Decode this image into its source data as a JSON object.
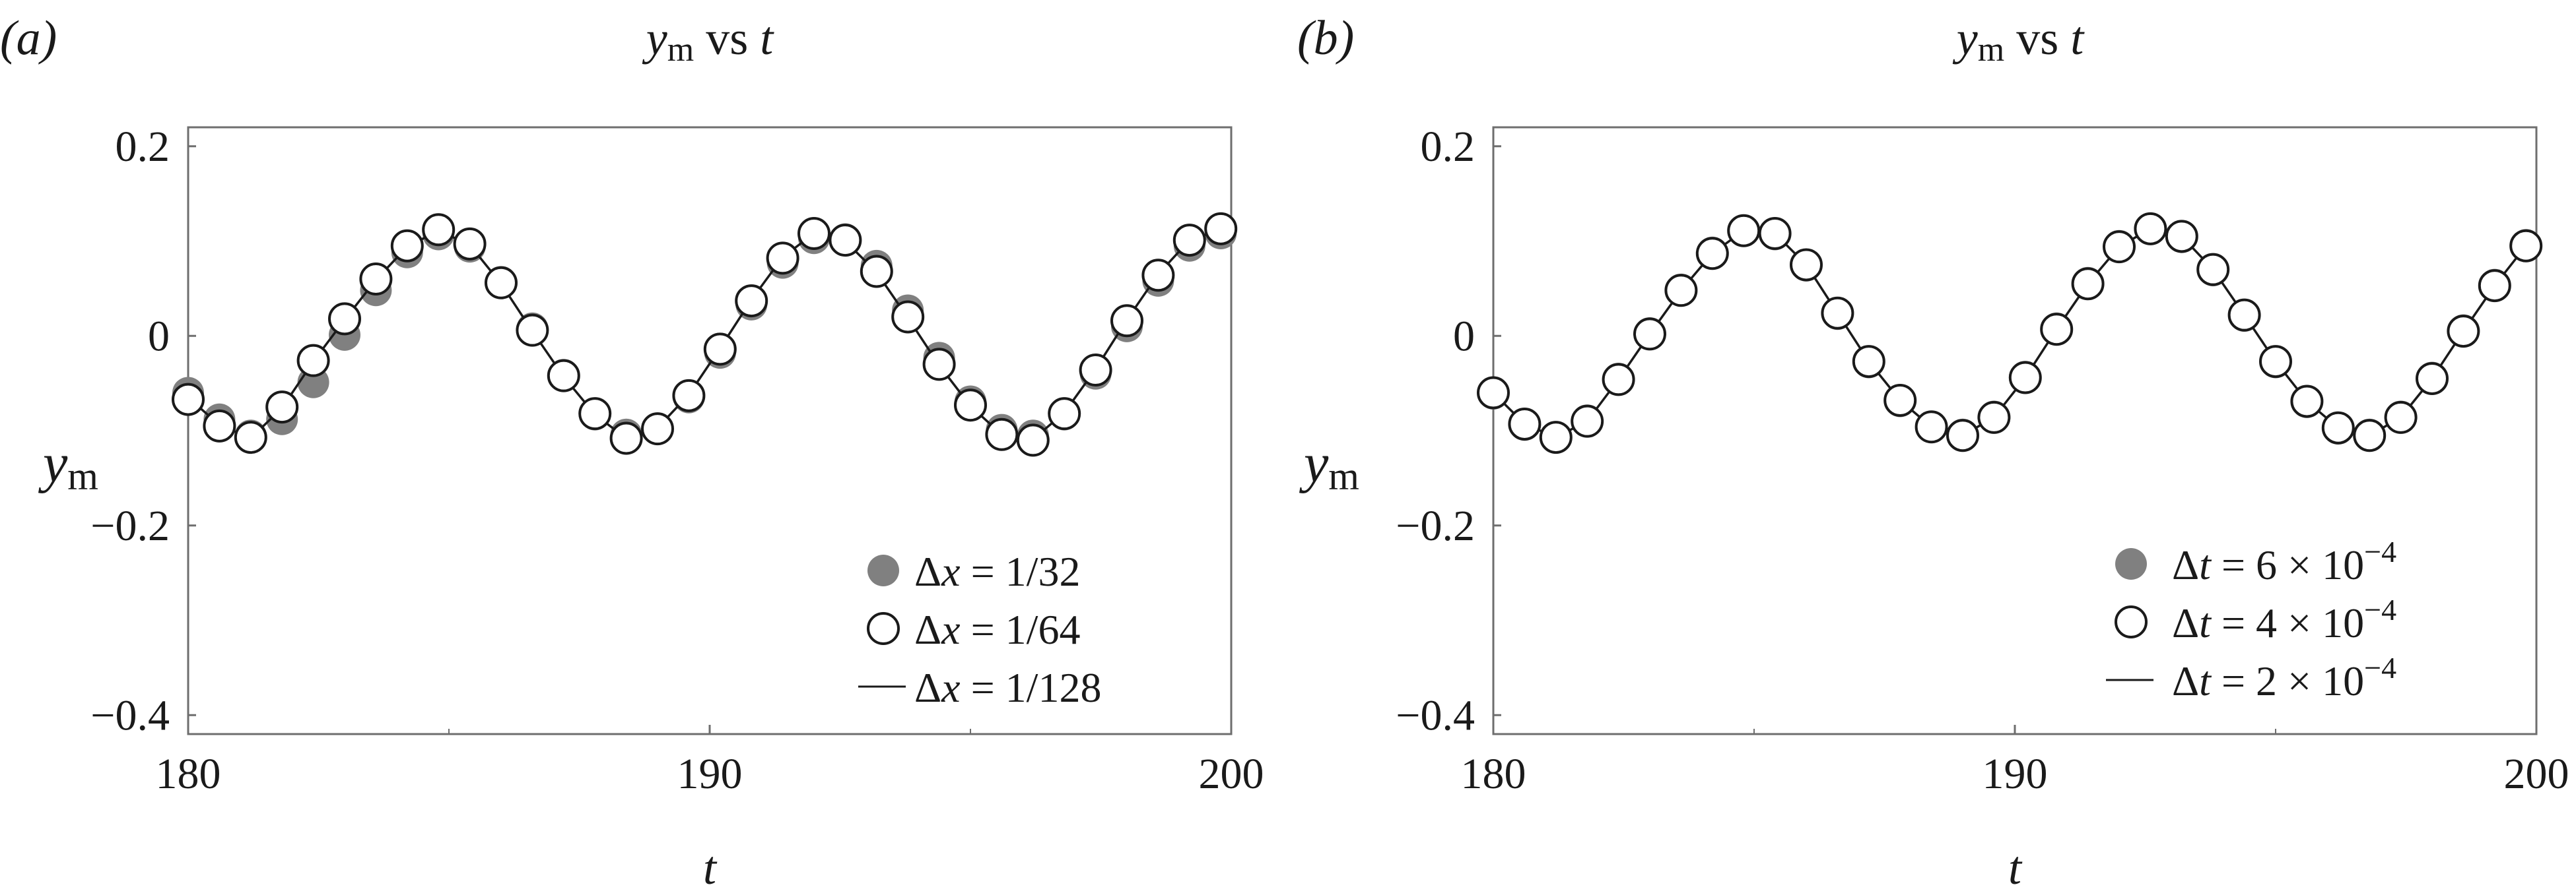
{
  "chart_data": [
    {
      "type": "line",
      "panel_label": "(a)",
      "title": {
        "var": "y",
        "sub": "m",
        "rest": " vs ",
        "tvar": "t"
      },
      "xlabel": "t",
      "ylabel": {
        "var": "y",
        "sub": "m"
      },
      "xlim": [
        180,
        200
      ],
      "ylim": [
        -0.42,
        0.22
      ],
      "xticks": [
        180,
        190,
        200
      ],
      "xtick_labels": [
        "180",
        "190",
        "200"
      ],
      "yticks": [
        0.2,
        0,
        -0.2,
        -0.4
      ],
      "ytick_labels": [
        "0.2",
        "0",
        "−0.2",
        "−0.4"
      ],
      "legend_position": "bottom-right",
      "colors": {
        "filled": "#808080",
        "open_fill": "#ffffff",
        "edge": "#1a1a1a",
        "line": "#1a1a1a"
      },
      "series": [
        {
          "name": "Δx = 1/32",
          "legend": {
            "sym": "Δ",
            "var": "x",
            "text": " = 1/32"
          },
          "marker": "filled",
          "x": [
            180,
            180.6,
            181.2,
            181.8,
            182.4,
            183,
            183.6,
            184.2,
            184.8,
            185.4,
            186,
            186.6,
            187.2,
            187.8,
            188.4,
            189,
            189.6,
            190.2,
            190.8,
            191.4,
            192,
            192.6,
            193.2,
            193.8,
            194.4,
            195,
            195.6,
            196.2,
            196.8,
            197.4,
            198,
            198.6,
            199.2,
            199.8
          ],
          "y": [
            -0.06,
            -0.088,
            -0.105,
            -0.088,
            -0.049,
            0.001,
            0.048,
            0.088,
            0.107,
            0.094,
            0.057,
            0.008,
            -0.041,
            -0.083,
            -0.104,
            -0.098,
            -0.065,
            -0.018,
            0.033,
            0.077,
            0.103,
            0.102,
            0.074,
            0.027,
            -0.023,
            -0.069,
            -0.099,
            -0.105,
            -0.083,
            -0.04,
            0.01,
            0.058,
            0.095,
            0.108
          ]
        },
        {
          "name": "Δx = 1/64",
          "legend": {
            "sym": "Δ",
            "var": "x",
            "text": " = 1/64"
          },
          "marker": "open",
          "x": [
            180,
            180.6,
            181.2,
            181.8,
            182.4,
            183,
            183.6,
            184.2,
            184.8,
            185.4,
            186,
            186.6,
            187.2,
            187.8,
            188.4,
            189,
            189.6,
            190.2,
            190.8,
            191.4,
            192,
            192.6,
            193.2,
            193.8,
            194.4,
            195,
            195.6,
            196.2,
            196.8,
            197.4,
            198,
            198.6,
            199.2,
            199.8
          ],
          "y": [
            -0.067,
            -0.095,
            -0.107,
            -0.075,
            -0.026,
            0.018,
            0.06,
            0.095,
            0.112,
            0.097,
            0.056,
            0.006,
            -0.042,
            -0.082,
            -0.108,
            -0.098,
            -0.063,
            -0.014,
            0.037,
            0.082,
            0.108,
            0.101,
            0.068,
            0.02,
            -0.03,
            -0.073,
            -0.104,
            -0.11,
            -0.082,
            -0.036,
            0.016,
            0.064,
            0.101,
            0.113
          ]
        },
        {
          "name": "Δx = 1/128",
          "legend": {
            "sym": "Δ",
            "var": "x",
            "text": " = 1/128"
          },
          "marker": "line",
          "x": [
            180,
            180.6,
            181.2,
            181.8,
            182.4,
            183,
            183.6,
            184.2,
            184.8,
            185.4,
            186,
            186.6,
            187.2,
            187.8,
            188.4,
            189,
            189.6,
            190.2,
            190.8,
            191.4,
            192,
            192.6,
            193.2,
            193.8,
            194.4,
            195,
            195.6,
            196.2,
            196.8,
            197.4,
            198,
            198.6,
            199.2,
            199.8
          ],
          "y": [
            -0.065,
            -0.094,
            -0.108,
            -0.076,
            -0.027,
            0.017,
            0.059,
            0.094,
            0.111,
            0.096,
            0.055,
            0.005,
            -0.043,
            -0.083,
            -0.108,
            -0.097,
            -0.062,
            -0.013,
            0.038,
            0.083,
            0.108,
            0.1,
            0.067,
            0.019,
            -0.031,
            -0.074,
            -0.104,
            -0.109,
            -0.081,
            -0.035,
            0.017,
            0.065,
            0.101,
            0.112
          ]
        }
      ]
    },
    {
      "type": "line",
      "panel_label": "(b)",
      "title": {
        "var": "y",
        "sub": "m",
        "rest": " vs ",
        "tvar": "t"
      },
      "xlabel": "t",
      "ylabel": {
        "var": "y",
        "sub": "m"
      },
      "xlim": [
        180,
        200
      ],
      "ylim": [
        -0.42,
        0.22
      ],
      "xticks": [
        180,
        190,
        200
      ],
      "xtick_labels": [
        "180",
        "190",
        "200"
      ],
      "yticks": [
        0.2,
        0,
        -0.2,
        -0.4
      ],
      "ytick_labels": [
        "0.2",
        "0",
        "−0.2",
        "−0.4"
      ],
      "legend_position": "bottom-right",
      "colors": {
        "filled": "#808080",
        "open_fill": "#ffffff",
        "edge": "#1a1a1a",
        "line": "#1a1a1a"
      },
      "series": [
        {
          "name": "Δt = 6 × 10−4",
          "legend": {
            "sym": "Δ",
            "var": "t",
            "text": " = 6 × 10",
            "sup": "−4"
          },
          "marker": "filled",
          "x": [
            180,
            180.6,
            181.2,
            181.8,
            182.4,
            183,
            183.6,
            184.2,
            184.8,
            185.4,
            186,
            186.6,
            187.2,
            187.8,
            188.4,
            189,
            189.6,
            190.2,
            190.8,
            191.4,
            192,
            192.6,
            193.2,
            193.8,
            194.4,
            195,
            195.6,
            196.2,
            196.8,
            197.4,
            198,
            198.6,
            199.2,
            199.8
          ],
          "y": [
            -0.061,
            -0.094,
            -0.107,
            -0.089,
            -0.045,
            0.003,
            0.049,
            0.088,
            0.111,
            0.107,
            0.074,
            0.023,
            -0.028,
            -0.069,
            -0.096,
            -0.104,
            -0.085,
            -0.043,
            0.008,
            0.056,
            0.095,
            0.113,
            0.104,
            0.069,
            0.021,
            -0.028,
            -0.07,
            -0.098,
            -0.104,
            -0.085,
            -0.044,
            0.006,
            0.054,
            0.096
          ]
        },
        {
          "name": "Δt = 4 × 10−4",
          "legend": {
            "sym": "Δ",
            "var": "t",
            "text": " = 4 × 10",
            "sup": "−4"
          },
          "marker": "open",
          "x": [
            180,
            180.6,
            181.2,
            181.8,
            182.4,
            183,
            183.6,
            184.2,
            184.8,
            185.4,
            186,
            186.6,
            187.2,
            187.8,
            188.4,
            189,
            189.6,
            190.2,
            190.8,
            191.4,
            192,
            192.6,
            193.2,
            193.8,
            194.4,
            195,
            195.6,
            196.2,
            196.8,
            197.4,
            198,
            198.6,
            199.2,
            199.8
          ],
          "y": [
            -0.06,
            -0.093,
            -0.107,
            -0.09,
            -0.046,
            0.002,
            0.048,
            0.087,
            0.111,
            0.108,
            0.075,
            0.024,
            -0.027,
            -0.068,
            -0.096,
            -0.105,
            -0.086,
            -0.044,
            0.007,
            0.055,
            0.094,
            0.113,
            0.105,
            0.07,
            0.022,
            -0.027,
            -0.069,
            -0.097,
            -0.105,
            -0.086,
            -0.045,
            0.005,
            0.053,
            0.095
          ]
        },
        {
          "name": "Δt = 2 × 10−4",
          "legend": {
            "sym": "Δ",
            "var": "t",
            "text": " = 2 × 10",
            "sup": "−4"
          },
          "marker": "line",
          "x": [
            180,
            180.6,
            181.2,
            181.8,
            182.4,
            183,
            183.6,
            184.2,
            184.8,
            185.4,
            186,
            186.6,
            187.2,
            187.8,
            188.4,
            189,
            189.6,
            190.2,
            190.8,
            191.4,
            192,
            192.6,
            193.2,
            193.8,
            194.4,
            195,
            195.6,
            196.2,
            196.8,
            197.4,
            198,
            198.6,
            199.2,
            199.8
          ],
          "y": [
            -0.06,
            -0.093,
            -0.107,
            -0.09,
            -0.046,
            0.002,
            0.048,
            0.087,
            0.111,
            0.108,
            0.075,
            0.024,
            -0.027,
            -0.068,
            -0.096,
            -0.105,
            -0.086,
            -0.044,
            0.007,
            0.055,
            0.094,
            0.113,
            0.105,
            0.07,
            0.022,
            -0.027,
            -0.069,
            -0.097,
            -0.105,
            -0.086,
            -0.045,
            0.005,
            0.053,
            0.095
          ]
        }
      ]
    }
  ]
}
